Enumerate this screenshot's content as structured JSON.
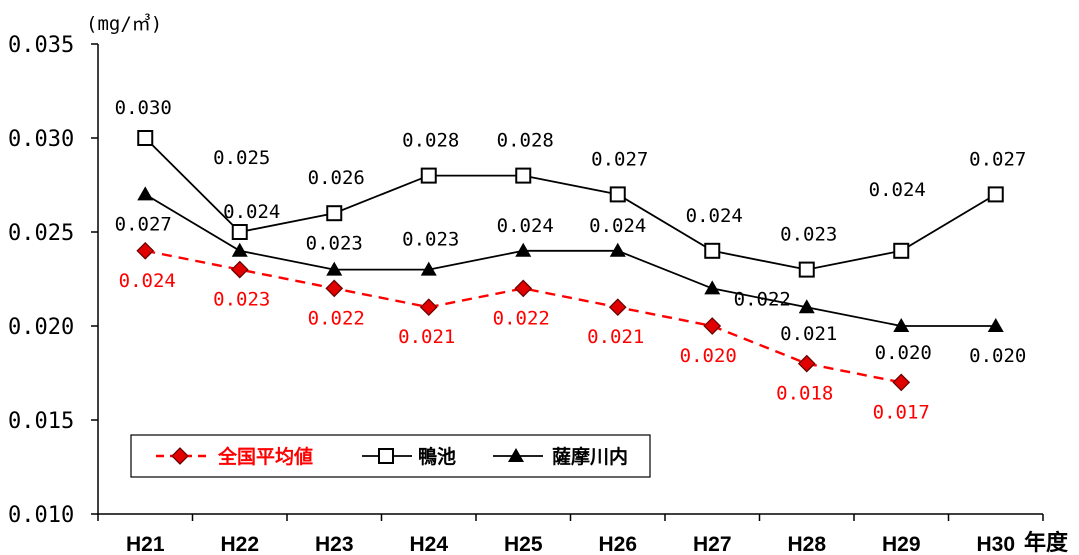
{
  "chart_data": {
    "type": "line",
    "unit_label": "(mg/㎥)",
    "xlabel": "年度",
    "categories": [
      "H21",
      "H22",
      "H23",
      "H24",
      "H25",
      "H26",
      "H27",
      "H28",
      "H29",
      "H30"
    ],
    "ylim": [
      0.01,
      0.035
    ],
    "yticks": [
      "0.010",
      "0.015",
      "0.020",
      "0.025",
      "0.030",
      "0.035"
    ],
    "grid": false,
    "legend_position": "bottom-left",
    "series": [
      {
        "name": "全国平均値",
        "color": "#ff0000",
        "marker": "diamond",
        "line_style": "dashed",
        "values": [
          0.024,
          0.023,
          0.022,
          0.021,
          0.022,
          0.021,
          0.02,
          0.018,
          0.017,
          null
        ],
        "labels": [
          "0.024",
          "0.023",
          "0.022",
          "0.021",
          "0.022",
          "0.021",
          "0.020",
          "0.018",
          "0.017",
          ""
        ]
      },
      {
        "name": "鴨池",
        "color": "#000000",
        "marker": "square-open",
        "line_style": "solid",
        "values": [
          0.03,
          0.025,
          0.026,
          0.028,
          0.028,
          0.027,
          0.024,
          0.023,
          0.024,
          0.027
        ],
        "labels": [
          "0.030",
          "0.025",
          "0.026",
          "0.028",
          "0.028",
          "0.027",
          "0.024",
          "0.023",
          "0.024",
          "0.027"
        ]
      },
      {
        "name": "薩摩川内",
        "color": "#000000",
        "marker": "triangle",
        "line_style": "solid",
        "values": [
          0.027,
          0.024,
          0.023,
          0.023,
          0.024,
          0.024,
          0.022,
          0.021,
          0.02,
          0.02
        ],
        "labels": [
          "0.027",
          "0.024",
          "0.023",
          "0.023",
          "0.024",
          "0.024",
          "0.022",
          "0.021",
          "0.020",
          "0.020"
        ]
      }
    ]
  }
}
